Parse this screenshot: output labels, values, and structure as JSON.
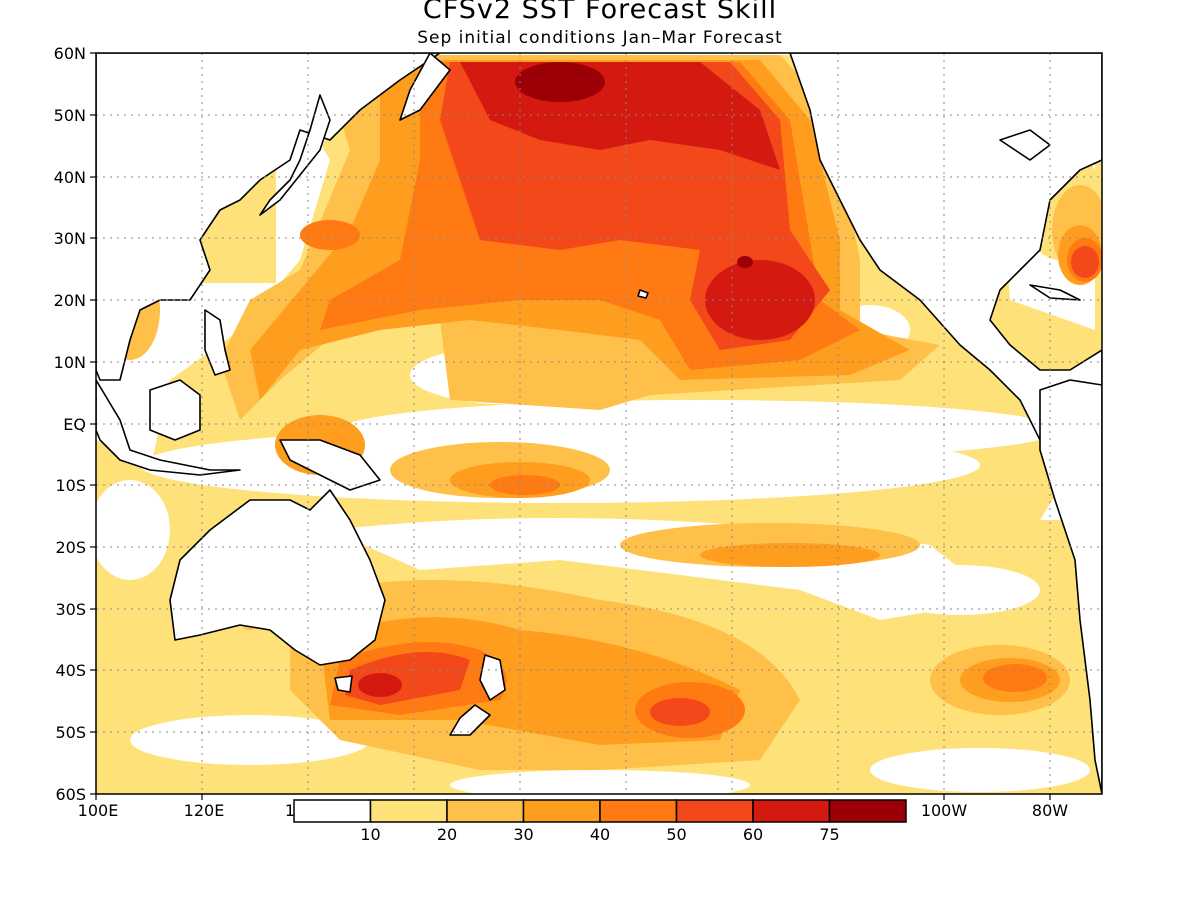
{
  "title": "CFSv2 SST Forecast Skill",
  "subtitle": "Sep initial conditions  Jan–Mar Forecast",
  "map": {
    "lat_labels": [
      "60N",
      "50N",
      "40N",
      "30N",
      "20N",
      "10N",
      "EQ",
      "10S",
      "20S",
      "30S",
      "40S",
      "50S",
      "60S"
    ],
    "lon_labels": [
      "100E",
      "120E",
      "1",
      "100W",
      "80W"
    ]
  },
  "legend": {
    "tick_labels": [
      "10",
      "20",
      "30",
      "40",
      "50",
      "60",
      "75"
    ],
    "colors": [
      "#ffffff",
      "#ffe17a",
      "#ffc04a",
      "#ff9e1e",
      "#ff7a12",
      "#f2481a",
      "#d41a10",
      "#9c0006"
    ]
  }
}
